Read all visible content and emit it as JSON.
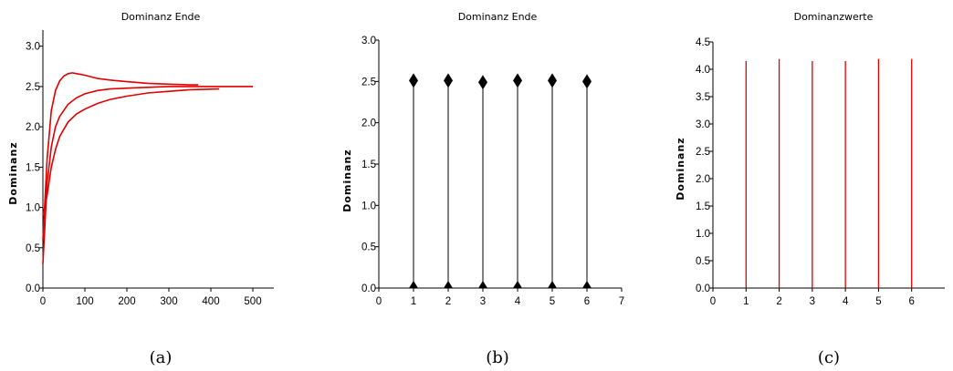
{
  "chart_data": [
    {
      "type": "line",
      "title": "Dominanz Ende",
      "xlabel": "",
      "ylabel": "Dominanz",
      "xlim": [
        0,
        550
      ],
      "ylim": [
        0,
        3.2
      ],
      "xticks": [
        "0",
        "100",
        "200",
        "300",
        "400",
        "500"
      ],
      "yticks": [
        "0.0",
        "0.5",
        "1.0",
        "1.5",
        "2.0",
        "2.5",
        "3.0"
      ],
      "color": "#e00000",
      "series": [
        {
          "x": [
            0,
            10,
            20,
            30,
            40,
            50,
            60,
            70,
            80,
            100,
            130,
            160,
            200,
            250,
            300,
            350,
            370
          ],
          "y": [
            0.6,
            1.6,
            2.2,
            2.45,
            2.57,
            2.63,
            2.66,
            2.67,
            2.66,
            2.64,
            2.6,
            2.58,
            2.56,
            2.54,
            2.53,
            2.52,
            2.52
          ]
        },
        {
          "x": [
            0,
            10,
            20,
            30,
            40,
            60,
            80,
            100,
            130,
            160,
            200,
            250,
            300,
            380,
            460,
            500
          ],
          "y": [
            0.3,
            1.3,
            1.75,
            2.0,
            2.13,
            2.28,
            2.36,
            2.41,
            2.45,
            2.47,
            2.48,
            2.49,
            2.5,
            2.5,
            2.5,
            2.5
          ]
        },
        {
          "x": [
            0,
            10,
            20,
            30,
            40,
            60,
            80,
            100,
            130,
            160,
            200,
            250,
            300,
            350,
            420
          ],
          "y": [
            0.9,
            1.15,
            1.5,
            1.72,
            1.88,
            2.06,
            2.16,
            2.22,
            2.29,
            2.34,
            2.38,
            2.42,
            2.44,
            2.46,
            2.47
          ]
        }
      ]
    },
    {
      "type": "scatter",
      "title": "Dominanz Ende",
      "xlabel": "",
      "ylabel": "Dominanz",
      "xlim": [
        0,
        7
      ],
      "ylim": [
        0,
        3.0
      ],
      "xticks": [
        "0",
        "1",
        "2",
        "3",
        "4",
        "5",
        "6",
        "7"
      ],
      "yticks": [
        "0.0",
        "0.5",
        "1.0",
        "1.5",
        "2.0",
        "2.5",
        "3.0"
      ],
      "color": "#000000",
      "x": [
        1,
        2,
        3,
        4,
        5,
        6
      ],
      "values": [
        2.51,
        2.51,
        2.49,
        2.51,
        2.51,
        2.5
      ]
    },
    {
      "type": "bar",
      "title": "Dominanzwerte",
      "xlabel": "",
      "ylabel": "Dominanz",
      "xlim": [
        0,
        7
      ],
      "ylim": [
        0,
        4.5
      ],
      "xticks": [
        "0",
        "1",
        "2",
        "3",
        "4",
        "5",
        "6"
      ],
      "yticks": [
        "0.0",
        "0.5",
        "1.0",
        "1.5",
        "2.0",
        "2.5",
        "3.0",
        "3.5",
        "4.0",
        "4.5"
      ],
      "color": "#e00000",
      "x": [
        1,
        2,
        3,
        4,
        5,
        6
      ],
      "values": [
        4.15,
        4.19,
        4.15,
        4.15,
        4.19,
        4.19
      ]
    }
  ],
  "captions": [
    "(a)",
    "(b)",
    "(c)"
  ]
}
